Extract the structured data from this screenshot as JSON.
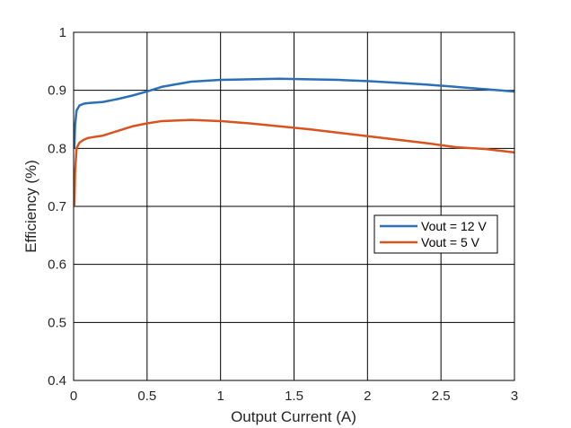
{
  "chart_data": {
    "type": "line",
    "xlabel": "Output Current (A)",
    "ylabel": "Efficiency (%)",
    "xlim": [
      0,
      3
    ],
    "ylim": [
      0.4,
      1
    ],
    "x_ticks": [
      "0",
      "0.5",
      "1",
      "1.5",
      "2",
      "2.5",
      "3"
    ],
    "y_ticks": [
      "0.4",
      "0.5",
      "0.6",
      "0.7",
      "0.8",
      "0.9",
      "1"
    ],
    "grid": true,
    "legend_position": "center-right",
    "series": [
      {
        "name": "Vout = 12 V",
        "color": "#2b6fb6",
        "x": [
          0.005,
          0.01,
          0.02,
          0.04,
          0.07,
          0.1,
          0.2,
          0.3,
          0.4,
          0.5,
          0.6,
          0.8,
          1.0,
          1.2,
          1.4,
          1.6,
          1.8,
          2.0,
          2.2,
          2.4,
          2.6,
          2.8,
          3.0
        ],
        "y": [
          0.8,
          0.84,
          0.865,
          0.874,
          0.877,
          0.878,
          0.88,
          0.885,
          0.891,
          0.898,
          0.906,
          0.915,
          0.918,
          0.919,
          0.92,
          0.919,
          0.918,
          0.916,
          0.913,
          0.91,
          0.906,
          0.902,
          0.898
        ]
      },
      {
        "name": "Vout = 5 V",
        "color": "#d9531e",
        "x": [
          0.005,
          0.01,
          0.02,
          0.04,
          0.07,
          0.1,
          0.2,
          0.3,
          0.4,
          0.5,
          0.6,
          0.8,
          1.0,
          1.2,
          1.4,
          1.6,
          1.8,
          2.0,
          2.2,
          2.4,
          2.6,
          2.8,
          3.0
        ],
        "y": [
          0.7,
          0.76,
          0.8,
          0.81,
          0.815,
          0.818,
          0.822,
          0.83,
          0.838,
          0.843,
          0.847,
          0.849,
          0.847,
          0.843,
          0.838,
          0.833,
          0.827,
          0.821,
          0.815,
          0.809,
          0.802,
          0.799,
          0.793
        ]
      }
    ]
  }
}
